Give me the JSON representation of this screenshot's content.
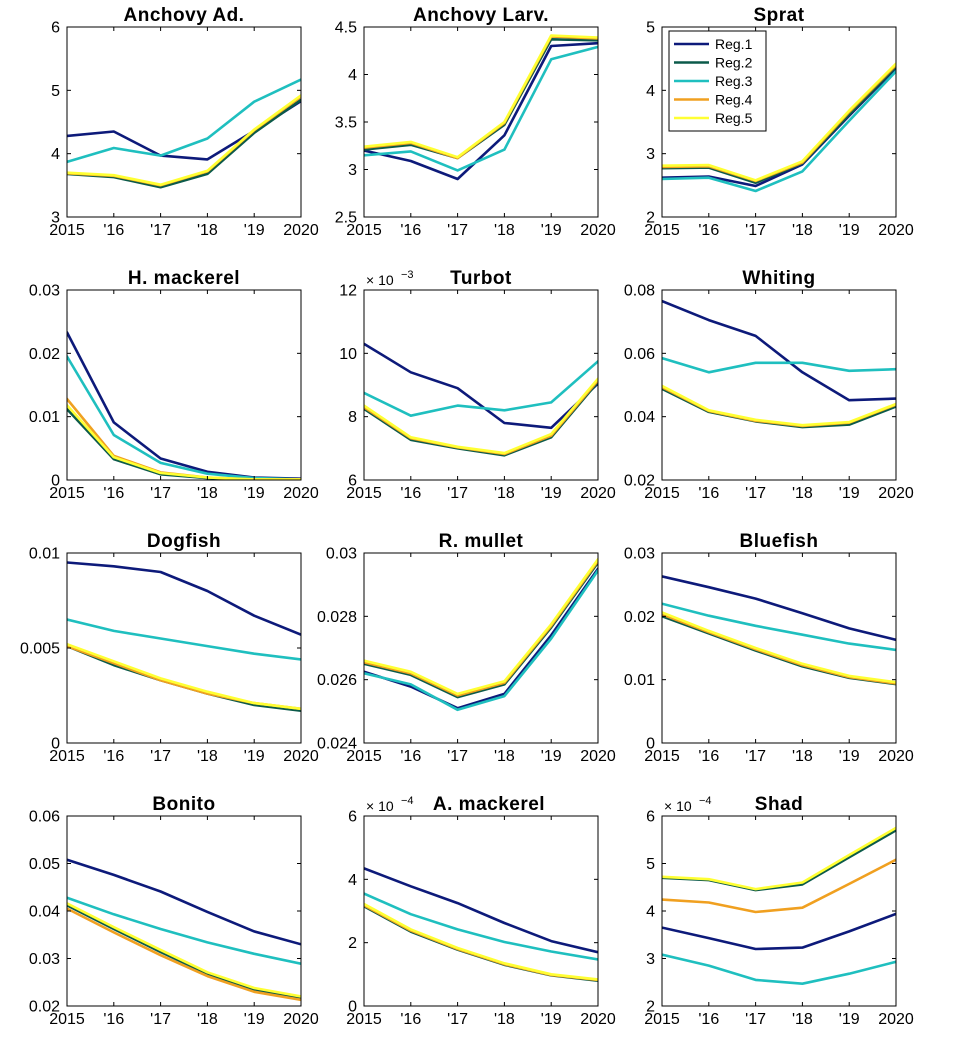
{
  "colors": {
    "Reg.1": "#0d1a7a",
    "Reg.2": "#0b5a4a",
    "Reg.3": "#1fbfbf",
    "Reg.4": "#f0a020",
    "Reg.5": "#ffff33"
  },
  "legend": {
    "entries": [
      "Reg.1",
      "Reg.2",
      "Reg.3",
      "Reg.4",
      "Reg.5"
    ],
    "placement": "top-left of Sprat panel"
  },
  "chart_data": [
    {
      "type": "line",
      "title": "Anchovy Ad.",
      "x": [
        2015,
        2016,
        2017,
        2018,
        2019,
        2020
      ],
      "xticklabels": [
        "2015",
        "'16",
        "'17",
        "'18",
        "'19",
        "2020"
      ],
      "ylim": [
        3,
        6
      ],
      "yticks": [
        3,
        4,
        5,
        6
      ],
      "yticklabels": [
        "3",
        "4",
        "5",
        "6"
      ],
      "exponent": null,
      "series": [
        {
          "name": "Reg.1",
          "values": [
            4.28,
            4.35,
            3.97,
            3.91,
            4.36,
            4.83
          ]
        },
        {
          "name": "Reg.2",
          "values": [
            3.68,
            3.63,
            3.47,
            3.68,
            4.33,
            4.85
          ]
        },
        {
          "name": "Reg.3",
          "values": [
            3.87,
            4.09,
            3.97,
            4.24,
            4.82,
            5.17
          ]
        },
        {
          "name": "Reg.4",
          "values": [
            3.69,
            3.65,
            3.5,
            3.72,
            4.37,
            4.9
          ]
        },
        {
          "name": "Reg.5",
          "values": [
            3.7,
            3.66,
            3.51,
            3.73,
            4.38,
            4.92
          ]
        }
      ]
    },
    {
      "type": "line",
      "title": "Anchovy Larv.",
      "x": [
        2015,
        2016,
        2017,
        2018,
        2019,
        2020
      ],
      "xticklabels": [
        "2015",
        "'16",
        "'17",
        "'18",
        "'19",
        "2020"
      ],
      "ylim": [
        2.5,
        4.5
      ],
      "yticks": [
        2.5,
        3,
        3.5,
        4,
        4.5
      ],
      "yticklabels": [
        "2.5",
        "3",
        "3.5",
        "4",
        "4.5"
      ],
      "exponent": null,
      "series": [
        {
          "name": "Reg.1",
          "values": [
            3.2,
            3.09,
            2.9,
            3.36,
            4.3,
            4.33
          ]
        },
        {
          "name": "Reg.2",
          "values": [
            3.21,
            3.26,
            3.12,
            3.47,
            4.37,
            4.36
          ]
        },
        {
          "name": "Reg.3",
          "values": [
            3.15,
            3.19,
            2.99,
            3.21,
            4.16,
            4.29
          ]
        },
        {
          "name": "Reg.4",
          "values": [
            3.23,
            3.28,
            3.12,
            3.49,
            4.4,
            4.38
          ]
        },
        {
          "name": "Reg.5",
          "values": [
            3.24,
            3.29,
            3.13,
            3.5,
            4.41,
            4.39
          ]
        }
      ]
    },
    {
      "type": "line",
      "title": "Sprat",
      "x": [
        2015,
        2016,
        2017,
        2018,
        2019,
        2020
      ],
      "xticklabels": [
        "2015",
        "'16",
        "'17",
        "'18",
        "'19",
        "2020"
      ],
      "ylim": [
        2,
        5
      ],
      "yticks": [
        2,
        3,
        4,
        5
      ],
      "yticklabels": [
        "2",
        "3",
        "4",
        "5"
      ],
      "exponent": null,
      "legend": true,
      "series": [
        {
          "name": "Reg.1",
          "values": [
            2.62,
            2.64,
            2.49,
            2.83,
            3.6,
            4.35
          ]
        },
        {
          "name": "Reg.2",
          "values": [
            2.77,
            2.78,
            2.54,
            2.85,
            3.62,
            4.37
          ]
        },
        {
          "name": "Reg.3",
          "values": [
            2.6,
            2.62,
            2.41,
            2.72,
            3.52,
            4.3
          ]
        },
        {
          "name": "Reg.4",
          "values": [
            2.79,
            2.8,
            2.57,
            2.86,
            3.66,
            4.4
          ]
        },
        {
          "name": "Reg.5",
          "values": [
            2.81,
            2.82,
            2.58,
            2.88,
            3.68,
            4.42
          ]
        }
      ]
    },
    {
      "type": "line",
      "title": "H. mackerel",
      "x": [
        2015,
        2016,
        2017,
        2018,
        2019,
        2020
      ],
      "xticklabels": [
        "2015",
        "'16",
        "'17",
        "'18",
        "'19",
        "2020"
      ],
      "ylim": [
        0,
        0.03
      ],
      "yticks": [
        0,
        0.01,
        0.02,
        0.03
      ],
      "yticklabels": [
        "0",
        "0.01",
        "0.02",
        "0.03"
      ],
      "exponent": null,
      "series": [
        {
          "name": "Reg.1",
          "values": [
            0.0233,
            0.0091,
            0.0034,
            0.0013,
            0.0004,
            0.0002
          ]
        },
        {
          "name": "Reg.2",
          "values": [
            0.0112,
            0.0033,
            0.0009,
            0.0003,
            0.0001,
            0.0001
          ]
        },
        {
          "name": "Reg.3",
          "values": [
            0.0195,
            0.0071,
            0.0027,
            0.001,
            0.0003,
            0.0001
          ]
        },
        {
          "name": "Reg.4",
          "values": [
            0.0128,
            0.0038,
            0.0012,
            0.0004,
            0.0001,
            0.0001
          ]
        },
        {
          "name": "Reg.5",
          "values": [
            0.0118,
            0.0036,
            0.0011,
            0.0004,
            0.0001,
            0.0001
          ]
        }
      ]
    },
    {
      "type": "line",
      "title": "Turbot",
      "x": [
        2015,
        2016,
        2017,
        2018,
        2019,
        2020
      ],
      "xticklabels": [
        "2015",
        "'16",
        "'17",
        "'18",
        "'19",
        "2020"
      ],
      "ylim": [
        6,
        12
      ],
      "yticks": [
        6,
        8,
        10,
        12
      ],
      "yticklabels": [
        "6",
        "8",
        "10",
        "12"
      ],
      "exponent": "-3",
      "series": [
        {
          "name": "Reg.1",
          "values": [
            10.3,
            9.4,
            8.9,
            7.8,
            7.65,
            9.05
          ]
        },
        {
          "name": "Reg.2",
          "values": [
            8.25,
            7.27,
            7.0,
            6.78,
            7.35,
            9.1
          ]
        },
        {
          "name": "Reg.3",
          "values": [
            8.75,
            8.03,
            8.35,
            8.2,
            8.45,
            9.75
          ]
        },
        {
          "name": "Reg.4",
          "values": [
            8.3,
            7.32,
            7.03,
            6.82,
            7.4,
            9.15
          ]
        },
        {
          "name": "Reg.5",
          "values": [
            8.35,
            7.35,
            7.05,
            6.85,
            7.45,
            9.2
          ]
        }
      ]
    },
    {
      "type": "line",
      "title": "Whiting",
      "x": [
        2015,
        2016,
        2017,
        2018,
        2019,
        2020
      ],
      "xticklabels": [
        "2015",
        "'16",
        "'17",
        "'18",
        "'19",
        "2020"
      ],
      "ylim": [
        0.02,
        0.08
      ],
      "yticks": [
        0.02,
        0.04,
        0.06,
        0.08
      ],
      "yticklabels": [
        "0.02",
        "0.04",
        "0.06",
        "0.08"
      ],
      "exponent": null,
      "series": [
        {
          "name": "Reg.1",
          "values": [
            0.0765,
            0.0705,
            0.0655,
            0.054,
            0.0452,
            0.0457
          ]
        },
        {
          "name": "Reg.2",
          "values": [
            0.0488,
            0.0415,
            0.0385,
            0.0367,
            0.0375,
            0.0432
          ]
        },
        {
          "name": "Reg.3",
          "values": [
            0.0585,
            0.054,
            0.057,
            0.057,
            0.0545,
            0.055
          ]
        },
        {
          "name": "Reg.4",
          "values": [
            0.0493,
            0.0418,
            0.0387,
            0.0371,
            0.0381,
            0.0438
          ]
        },
        {
          "name": "Reg.5",
          "values": [
            0.0497,
            0.042,
            0.039,
            0.0373,
            0.0383,
            0.044
          ]
        }
      ]
    },
    {
      "type": "line",
      "title": "Dogfish",
      "x": [
        2015,
        2016,
        2017,
        2018,
        2019,
        2020
      ],
      "xticklabels": [
        "2015",
        "'16",
        "'17",
        "'18",
        "'19",
        "2020"
      ],
      "ylim": [
        0,
        0.01
      ],
      "yticks": [
        0,
        0.005,
        0.01
      ],
      "yticklabels": [
        "0",
        "0.005",
        "0.01"
      ],
      "exponent": null,
      "series": [
        {
          "name": "Reg.1",
          "values": [
            0.0095,
            0.0093,
            0.009,
            0.008,
            0.0067,
            0.0057
          ]
        },
        {
          "name": "Reg.2",
          "values": [
            0.0051,
            0.0041,
            0.0033,
            0.0026,
            0.002,
            0.0017
          ]
        },
        {
          "name": "Reg.3",
          "values": [
            0.0065,
            0.0059,
            0.0055,
            0.0051,
            0.0047,
            0.0044
          ]
        },
        {
          "name": "Reg.4",
          "values": [
            0.0051,
            0.0042,
            0.0033,
            0.0026,
            0.0021,
            0.0018
          ]
        },
        {
          "name": "Reg.5",
          "values": [
            0.0052,
            0.0043,
            0.0034,
            0.0027,
            0.0021,
            0.0018
          ]
        }
      ]
    },
    {
      "type": "line",
      "title": "R. mullet",
      "x": [
        2015,
        2016,
        2017,
        2018,
        2019,
        2020
      ],
      "xticklabels": [
        "2015",
        "'16",
        "'17",
        "'18",
        "'19",
        "2020"
      ],
      "ylim": [
        0.024,
        0.03
      ],
      "yticks": [
        0.024,
        0.026,
        0.028,
        0.03
      ],
      "yticklabels": [
        "0.024",
        "0.026",
        "0.028",
        "0.03"
      ],
      "exponent": null,
      "series": [
        {
          "name": "Reg.1",
          "values": [
            0.02625,
            0.02578,
            0.0251,
            0.02555,
            0.0274,
            0.0295
          ]
        },
        {
          "name": "Reg.2",
          "values": [
            0.0265,
            0.02615,
            0.02545,
            0.02585,
            0.02765,
            0.0297
          ]
        },
        {
          "name": "Reg.3",
          "values": [
            0.0262,
            0.02585,
            0.02505,
            0.02548,
            0.0273,
            0.02945
          ]
        },
        {
          "name": "Reg.4",
          "values": [
            0.02655,
            0.0262,
            0.0255,
            0.0259,
            0.0277,
            0.02975
          ]
        },
        {
          "name": "Reg.5",
          "values": [
            0.0266,
            0.02625,
            0.02555,
            0.02595,
            0.02775,
            0.0298
          ]
        }
      ]
    },
    {
      "type": "line",
      "title": "Bluefish",
      "x": [
        2015,
        2016,
        2017,
        2018,
        2019,
        2020
      ],
      "xticklabels": [
        "2015",
        "'16",
        "'17",
        "'18",
        "'19",
        "2020"
      ],
      "ylim": [
        0,
        0.03
      ],
      "yticks": [
        0,
        0.01,
        0.02,
        0.03
      ],
      "yticklabels": [
        "0",
        "0.01",
        "0.02",
        "0.03"
      ],
      "exponent": null,
      "series": [
        {
          "name": "Reg.1",
          "values": [
            0.0263,
            0.0246,
            0.0228,
            0.0205,
            0.0181,
            0.0163
          ]
        },
        {
          "name": "Reg.2",
          "values": [
            0.02,
            0.0173,
            0.0146,
            0.0121,
            0.0103,
            0.0093
          ]
        },
        {
          "name": "Reg.3",
          "values": [
            0.022,
            0.0201,
            0.0185,
            0.0171,
            0.0157,
            0.0147
          ]
        },
        {
          "name": "Reg.4",
          "values": [
            0.0203,
            0.0175,
            0.0148,
            0.0123,
            0.0104,
            0.0094
          ]
        },
        {
          "name": "Reg.5",
          "values": [
            0.0206,
            0.0177,
            0.015,
            0.0125,
            0.0106,
            0.0096
          ]
        }
      ]
    },
    {
      "type": "line",
      "title": "Bonito",
      "x": [
        2015,
        2016,
        2017,
        2018,
        2019,
        2020
      ],
      "xticklabels": [
        "2015",
        "'16",
        "'17",
        "'18",
        "'19",
        "2020"
      ],
      "ylim": [
        0.02,
        0.06
      ],
      "yticks": [
        0.02,
        0.03,
        0.04,
        0.05,
        0.06
      ],
      "yticklabels": [
        "0.02",
        "0.03",
        "0.04",
        "0.05",
        "0.06"
      ],
      "exponent": null,
      "series": [
        {
          "name": "Reg.1",
          "values": [
            0.0508,
            0.0476,
            0.0441,
            0.0398,
            0.0357,
            0.033
          ]
        },
        {
          "name": "Reg.2",
          "values": [
            0.0412,
            0.0362,
            0.0314,
            0.0268,
            0.0235,
            0.0217
          ]
        },
        {
          "name": "Reg.3",
          "values": [
            0.0428,
            0.0393,
            0.0362,
            0.0334,
            0.031,
            0.0289
          ]
        },
        {
          "name": "Reg.4",
          "values": [
            0.0405,
            0.0355,
            0.0307,
            0.0263,
            0.023,
            0.0213
          ]
        },
        {
          "name": "Reg.5",
          "values": [
            0.0416,
            0.0366,
            0.0318,
            0.0271,
            0.0238,
            0.022
          ]
        }
      ]
    },
    {
      "type": "line",
      "title": "A. mackerel",
      "x": [
        2015,
        2016,
        2017,
        2018,
        2019,
        2020
      ],
      "xticklabels": [
        "2015",
        "'16",
        "'17",
        "'18",
        "'19",
        "2020"
      ],
      "ylim": [
        0,
        6
      ],
      "yticks": [
        0,
        2,
        4,
        6
      ],
      "yticklabels": [
        "0",
        "2",
        "4",
        "6"
      ],
      "exponent": "-4",
      "series": [
        {
          "name": "Reg.1",
          "values": [
            4.35,
            3.78,
            3.25,
            2.62,
            2.05,
            1.7
          ]
        },
        {
          "name": "Reg.2",
          "values": [
            3.15,
            2.35,
            1.78,
            1.3,
            0.97,
            0.8
          ]
        },
        {
          "name": "Reg.3",
          "values": [
            3.55,
            2.9,
            2.42,
            2.02,
            1.72,
            1.47
          ]
        },
        {
          "name": "Reg.4",
          "values": [
            3.18,
            2.38,
            1.8,
            1.32,
            0.98,
            0.82
          ]
        },
        {
          "name": "Reg.5",
          "values": [
            3.22,
            2.42,
            1.83,
            1.35,
            1.0,
            0.84
          ]
        }
      ]
    },
    {
      "type": "line",
      "title": "Shad",
      "x": [
        2015,
        2016,
        2017,
        2018,
        2019,
        2020
      ],
      "xticklabels": [
        "2015",
        "'16",
        "'17",
        "'18",
        "'19",
        "2020"
      ],
      "ylim": [
        2,
        6
      ],
      "yticks": [
        2,
        3,
        4,
        5,
        6
      ],
      "yticklabels": [
        "2",
        "3",
        "4",
        "5",
        "6"
      ],
      "exponent": "-4",
      "series": [
        {
          "name": "Reg.1",
          "values": [
            3.65,
            3.43,
            3.2,
            3.23,
            3.57,
            3.94
          ]
        },
        {
          "name": "Reg.2",
          "values": [
            4.7,
            4.65,
            4.44,
            4.56,
            5.13,
            5.7
          ]
        },
        {
          "name": "Reg.3",
          "values": [
            3.08,
            2.85,
            2.55,
            2.47,
            2.68,
            2.93
          ]
        },
        {
          "name": "Reg.4",
          "values": [
            4.24,
            4.18,
            3.98,
            4.07,
            4.57,
            5.08
          ]
        },
        {
          "name": "Reg.5",
          "values": [
            4.72,
            4.67,
            4.46,
            4.6,
            5.18,
            5.75
          ]
        }
      ]
    }
  ]
}
